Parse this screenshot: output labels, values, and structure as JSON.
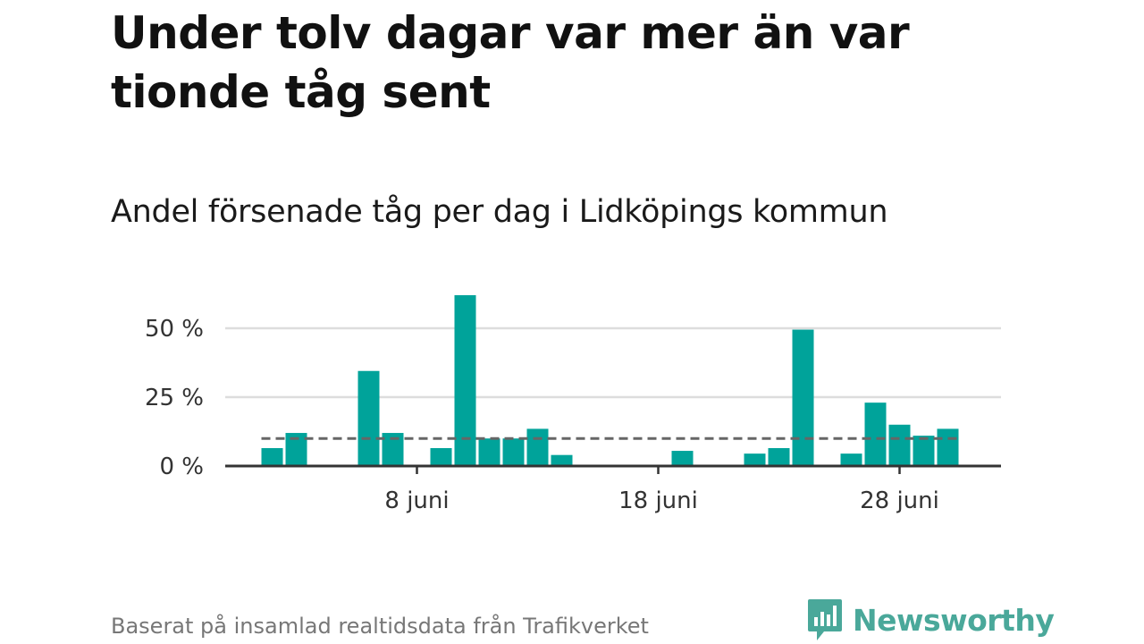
{
  "header": {
    "title": "Under tolv dagar var mer än var tionde tåg sent",
    "subtitle": "Andel försenade tåg per dag i Lidköpings kommun"
  },
  "footer": {
    "source": "Baserat på insamlad realtidsdata från Trafikverket",
    "logo_text": "Newsworthy",
    "logo_icon": "newsworthy-chart-bubble-icon"
  },
  "colors": {
    "bar": "#00a39a",
    "grid": "#dddddd",
    "axis": "#333333",
    "reference_line": "#666666",
    "logo": "#4aa89a"
  },
  "chart_data": {
    "type": "bar",
    "title": "Andel försenade tåg per dag i Lidköpings kommun",
    "xlabel": "",
    "ylabel": "",
    "unit": "%",
    "ylim": [
      0,
      62
    ],
    "y_ticks": [
      0,
      25,
      50
    ],
    "y_tick_labels": [
      "0 %",
      "25 %",
      "50 %"
    ],
    "x_ticks": [
      {
        "day": 8,
        "label": "8 juni"
      },
      {
        "day": 18,
        "label": "18 juni"
      },
      {
        "day": 28,
        "label": "28 juni"
      }
    ],
    "days": [
      1,
      2,
      3,
      4,
      5,
      6,
      7,
      8,
      9,
      10,
      11,
      12,
      13,
      14,
      15,
      16,
      17,
      18,
      19,
      20,
      21,
      22,
      23,
      24,
      25,
      26,
      27,
      28,
      29,
      30
    ],
    "values": [
      0,
      6.5,
      12,
      0,
      0,
      34.5,
      12,
      0,
      6.5,
      62,
      10,
      10,
      13.5,
      4,
      0,
      0,
      0,
      0,
      5.5,
      0,
      0,
      4.5,
      6.5,
      49.5,
      0,
      4.5,
      23,
      15,
      11,
      13.5
    ],
    "reference_line": {
      "value": 10,
      "from_day": 2,
      "to_day": 30,
      "style": "dashed"
    },
    "grid": true,
    "legend": "none"
  }
}
